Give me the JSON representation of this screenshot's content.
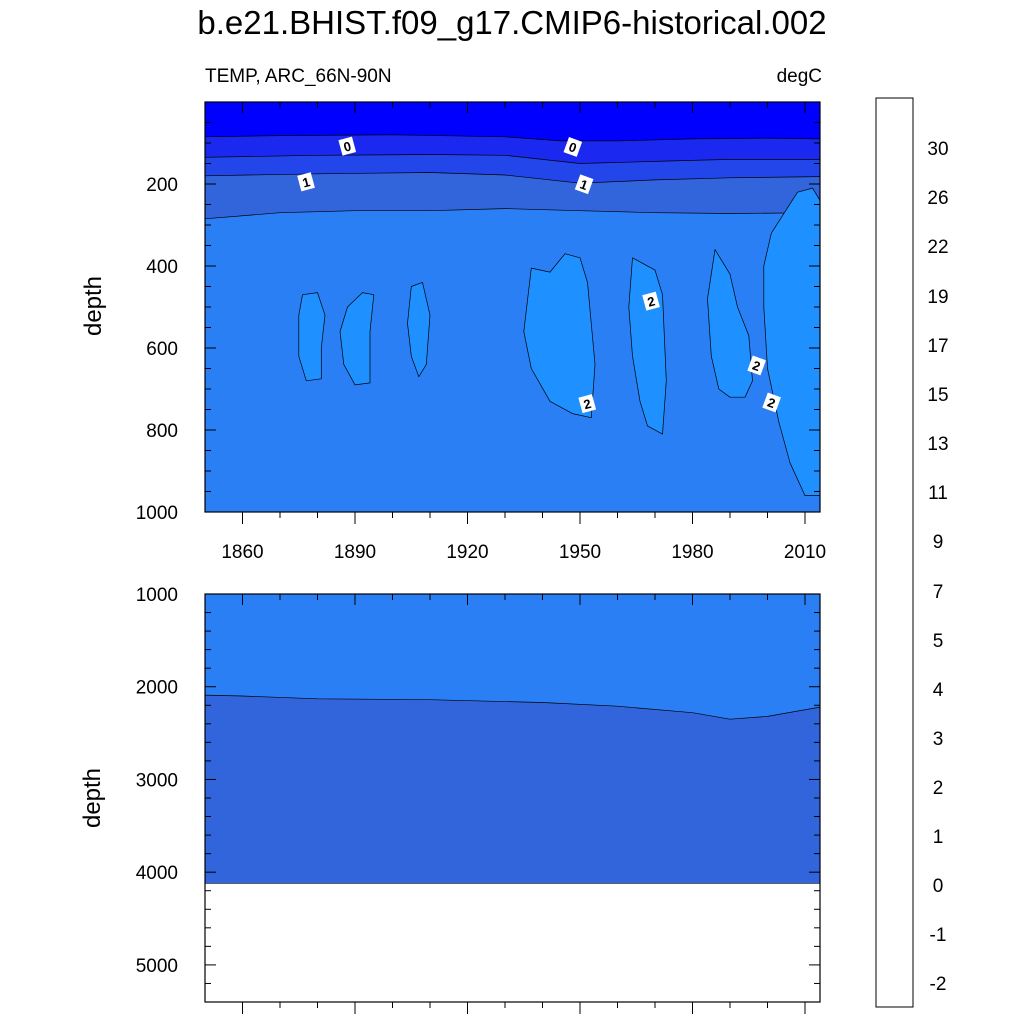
{
  "chart_data": {
    "type": "heatmap",
    "title": "b.e21.BHIST.f09_g17.CMIP6-historical.002",
    "colorbar": {
      "labels": [
        "-2",
        "-1",
        "0",
        "1",
        "2",
        "3",
        "4",
        "5",
        "7",
        "9",
        "11",
        "13",
        "15",
        "17",
        "19",
        "22",
        "26",
        "30"
      ],
      "colors": [
        "#8a2be2",
        "#6a1ef0",
        "#3a14f5",
        "#1e00f0",
        "#0000ff",
        "#1a28f0",
        "#2346eb",
        "#3264dc",
        "#386ee6",
        "#2b7ff5",
        "#1e90ff",
        "#1496ff",
        "#0aa3ff",
        "#00b4ff",
        "#28c3fa",
        "#5ac8f5",
        "#8ccdf0",
        "#a0d2f0",
        "#b4e1f5",
        "#ffffdc",
        "#fff596",
        "#ffeb69",
        "#ffe13c",
        "#ffd223",
        "#ffc314",
        "#ffb400",
        "#ff9f00",
        "#ff8a00",
        "#ff7500",
        "#ff5a00",
        "#ff3c00",
        "#ff1e00",
        "#f50000",
        "#e60000",
        "#cd0000",
        "#dc3232",
        "#eb6e6e",
        "#ffb4b4"
      ]
    },
    "panels": [
      {
        "name": "upper",
        "left_label": "TEMP, ARC_66N-90N",
        "right_label": "degC",
        "ylabel": "depth",
        "xlim": [
          1850,
          2014
        ],
        "ylim": [
          0,
          1000
        ],
        "y_reversed": true,
        "x_ticks": [
          "1860",
          "1890",
          "1920",
          "1950",
          "1980",
          "2010"
        ],
        "y_ticks": [
          "200",
          "400",
          "600",
          "800",
          "1000"
        ],
        "layers": [
          {
            "level": "<0",
            "color": "#0000ff",
            "depth_boundary": [
              [
                1850,
                85
              ],
              [
                1870,
                82
              ],
              [
                1900,
                80
              ],
              [
                1930,
                85
              ],
              [
                1945,
                95
              ],
              [
                1960,
                95
              ],
              [
                1980,
                90
              ],
              [
                2000,
                88
              ],
              [
                2014,
                90
              ]
            ]
          },
          {
            "level": "0-0.5",
            "color": "#1a28f0",
            "depth_boundary": [
              [
                1850,
                135
              ],
              [
                1880,
                130
              ],
              [
                1910,
                128
              ],
              [
                1930,
                130
              ],
              [
                1950,
                150
              ],
              [
                1970,
                145
              ],
              [
                1990,
                140
              ],
              [
                2014,
                140
              ]
            ]
          },
          {
            "level": "0.5-1",
            "color": "#2346eb",
            "depth_boundary": [
              [
                1850,
                180
              ],
              [
                1880,
                175
              ],
              [
                1910,
                172
              ],
              [
                1930,
                178
              ],
              [
                1950,
                198
              ],
              [
                1970,
                190
              ],
              [
                1990,
                185
              ],
              [
                2014,
                182
              ]
            ]
          },
          {
            "level": "1-1.5",
            "color": "#3264dc",
            "depth_boundary": [
              [
                1850,
                285
              ],
              [
                1870,
                270
              ],
              [
                1890,
                265
              ],
              [
                1910,
                265
              ],
              [
                1930,
                260
              ],
              [
                1950,
                265
              ],
              [
                1970,
                270
              ],
              [
                1990,
                272
              ],
              [
                2014,
                270
              ]
            ]
          },
          {
            "level": "1.5-2",
            "color": "#2b7ff5",
            "depth_boundary": [
              [
                1850,
                1000
              ],
              [
                2014,
                1000
              ]
            ]
          }
        ],
        "warm_cores": [
          {
            "level": ">2",
            "color": "#1e90ff",
            "outline": [
              [
                1876,
                470
              ],
              [
                1880,
                465
              ],
              [
                1882,
                520
              ],
              [
                1881,
                600
              ],
              [
                1881,
                675
              ],
              [
                1877,
                680
              ],
              [
                1875,
                620
              ],
              [
                1875,
                520
              ]
            ]
          },
          {
            "level": ">2",
            "color": "#1e90ff",
            "outline": [
              [
                1888,
                500
              ],
              [
                1892,
                465
              ],
              [
                1895,
                470
              ],
              [
                1894,
                560
              ],
              [
                1894,
                685
              ],
              [
                1890,
                690
              ],
              [
                1887,
                640
              ],
              [
                1886,
                560
              ]
            ]
          },
          {
            "level": ">2",
            "color": "#1e90ff",
            "outline": [
              [
                1905,
                450
              ],
              [
                1908,
                440
              ],
              [
                1910,
                520
              ],
              [
                1909,
                640
              ],
              [
                1907,
                670
              ],
              [
                1905,
                620
              ],
              [
                1904,
                540
              ]
            ]
          },
          {
            "level": ">2",
            "color": "#1e90ff",
            "outline": [
              [
                1937,
                405
              ],
              [
                1942,
                415
              ],
              [
                1946,
                370
              ],
              [
                1950,
                380
              ],
              [
                1952,
                440
              ],
              [
                1954,
                640
              ],
              [
                1953,
                770
              ],
              [
                1948,
                760
              ],
              [
                1942,
                730
              ],
              [
                1937,
                650
              ],
              [
                1935,
                560
              ]
            ]
          },
          {
            "level": ">2",
            "color": "#1e90ff",
            "outline": [
              [
                1964,
                380
              ],
              [
                1970,
                410
              ],
              [
                1972,
                470
              ],
              [
                1973,
                680
              ],
              [
                1972,
                810
              ],
              [
                1968,
                790
              ],
              [
                1966,
                730
              ],
              [
                1964,
                620
              ],
              [
                1963,
                500
              ]
            ]
          },
          {
            "level": ">2",
            "color": "#1e90ff",
            "outline": [
              [
                1986,
                360
              ],
              [
                1990,
                420
              ],
              [
                1992,
                500
              ],
              [
                1995,
                570
              ],
              [
                1996,
                680
              ],
              [
                1994,
                720
              ],
              [
                1990,
                720
              ],
              [
                1987,
                700
              ],
              [
                1985,
                620
              ],
              [
                1984,
                480
              ]
            ]
          },
          {
            "level": ">2",
            "color": "#1e90ff",
            "outline": [
              [
                2001,
                320
              ],
              [
                2008,
                220
              ],
              [
                2012,
                210
              ],
              [
                2014,
                240
              ],
              [
                2014,
                960
              ],
              [
                2010,
                960
              ],
              [
                2006,
                880
              ],
              [
                2003,
                780
              ],
              [
                2000,
                650
              ],
              [
                1999,
                500
              ],
              [
                1999,
                400
              ]
            ]
          }
        ],
        "contour_labels": [
          {
            "text": "0",
            "x": 1888,
            "depth": 110
          },
          {
            "text": "0",
            "x": 1948,
            "depth": 112
          },
          {
            "text": "1",
            "x": 1877,
            "depth": 197
          },
          {
            "text": "1",
            "x": 1951,
            "depth": 203
          },
          {
            "text": "2",
            "x": 1969,
            "depth": 488
          },
          {
            "text": "2",
            "x": 1997,
            "depth": 645
          },
          {
            "text": "2",
            "x": 1952,
            "depth": 738
          },
          {
            "text": "2",
            "x": 2001,
            "depth": 735
          }
        ]
      },
      {
        "name": "lower",
        "ylabel": "depth",
        "xlim": [
          1850,
          2014
        ],
        "ylim": [
          1000,
          5400
        ],
        "y_reversed": true,
        "y_ticks": [
          "1000",
          "2000",
          "3000",
          "4000",
          "5000"
        ],
        "bottom_depth": 4120,
        "layers": [
          {
            "level": "1.5-2",
            "color": "#2b7ff5",
            "depth_boundary": [
              [
                1850,
                2090
              ],
              [
                1860,
                2100
              ],
              [
                1880,
                2130
              ],
              [
                1910,
                2140
              ],
              [
                1940,
                2170
              ],
              [
                1960,
                2210
              ],
              [
                1980,
                2280
              ],
              [
                1990,
                2350
              ],
              [
                2000,
                2320
              ],
              [
                2014,
                2220
              ]
            ]
          },
          {
            "level": "1-1.5",
            "color": "#3264dc",
            "depth_boundary": [
              [
                1850,
                4120
              ],
              [
                2014,
                4120
              ]
            ]
          }
        ]
      }
    ]
  }
}
